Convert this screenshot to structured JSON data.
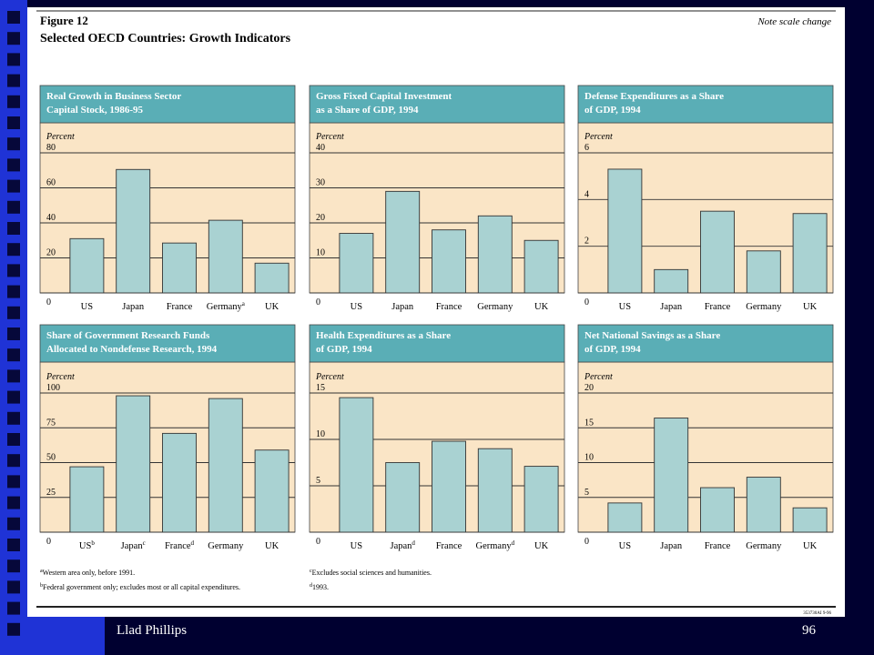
{
  "figure": {
    "label": "Figure 12",
    "title": "Selected OECD Countries: Growth Indicators",
    "note": "Note scale change",
    "code": "353730AI 9-96"
  },
  "footnotes": [
    {
      "mark": "a",
      "text": "Western area only, before 1991."
    },
    {
      "mark": "b",
      "text": "Federal government only; excludes most or all capital expenditures."
    },
    {
      "mark": "c",
      "text": "Excludes social sciences and humanities."
    },
    {
      "mark": "d",
      "text": "1993."
    }
  ],
  "footer": {
    "author": "Llad Phillips",
    "page": "96"
  },
  "chart_data": [
    {
      "type": "bar",
      "title": [
        "Real Growth in Business Sector",
        "Capital Stock, 1986-95"
      ],
      "ylabel": "Percent",
      "categories": [
        "US",
        "Japan",
        "France",
        "Germany",
        "UK"
      ],
      "category_notes": [
        null,
        null,
        null,
        "a",
        null
      ],
      "values": [
        31,
        70.5,
        28.5,
        41.5,
        17
      ],
      "ylim": [
        0,
        80
      ],
      "yticks": [
        0,
        20,
        40,
        60,
        80
      ],
      "grid": true,
      "color": "#a9d2d2"
    },
    {
      "type": "bar",
      "title": [
        "Gross Fixed Capital Investment",
        "as a Share of GDP, 1994"
      ],
      "ylabel": "Percent",
      "categories": [
        "US",
        "Japan",
        "France",
        "Germany",
        "UK"
      ],
      "category_notes": [
        null,
        null,
        null,
        null,
        null
      ],
      "values": [
        17,
        29,
        18,
        22,
        15
      ],
      "ylim": [
        0,
        40
      ],
      "yticks": [
        0,
        10,
        20,
        30,
        40
      ],
      "grid": true,
      "color": "#a9d2d2"
    },
    {
      "type": "bar",
      "title": [
        "Defense Expenditures as a Share",
        "of GDP, 1994"
      ],
      "ylabel": "Percent",
      "categories": [
        "US",
        "Japan",
        "France",
        "Germany",
        "UK"
      ],
      "category_notes": [
        null,
        null,
        null,
        null,
        null
      ],
      "values": [
        5.3,
        1.0,
        3.5,
        1.8,
        3.4
      ],
      "ylim": [
        0,
        6
      ],
      "yticks": [
        0,
        2,
        4,
        6
      ],
      "grid": true,
      "color": "#a9d2d2"
    },
    {
      "type": "bar",
      "title": [
        "Share of Government Research Funds",
        "Allocated to Nondefense Research, 1994"
      ],
      "ylabel": "Percent",
      "categories": [
        "US",
        "Japan",
        "France",
        "Germany",
        "UK"
      ],
      "category_notes": [
        "b",
        "c",
        "d",
        null,
        null
      ],
      "values": [
        47,
        98,
        71,
        96,
        59
      ],
      "ylim": [
        0,
        100
      ],
      "yticks": [
        0,
        25,
        50,
        75,
        100
      ],
      "grid": true,
      "color": "#a9d2d2"
    },
    {
      "type": "bar",
      "title": [
        "Health Expenditures as a Share",
        "of GDP, 1994"
      ],
      "ylabel": "Percent",
      "categories": [
        "US",
        "Japan",
        "France",
        "Germany",
        "UK"
      ],
      "category_notes": [
        null,
        "d",
        null,
        "d",
        null
      ],
      "values": [
        14.5,
        7.5,
        9.8,
        9.0,
        7.1
      ],
      "ylim": [
        0,
        15
      ],
      "yticks": [
        0,
        5,
        10,
        15
      ],
      "grid": true,
      "color": "#a9d2d2"
    },
    {
      "type": "bar",
      "title": [
        "Net National Savings as a Share",
        "of GDP, 1994"
      ],
      "ylabel": "Percent",
      "categories": [
        "US",
        "Japan",
        "France",
        "Germany",
        "UK"
      ],
      "category_notes": [
        null,
        null,
        null,
        null,
        null
      ],
      "values": [
        4.2,
        16.4,
        6.4,
        7.9,
        3.5
      ],
      "ylim": [
        0,
        20
      ],
      "yticks": [
        0,
        5,
        10,
        15,
        20
      ],
      "grid": true,
      "color": "#a9d2d2"
    }
  ]
}
